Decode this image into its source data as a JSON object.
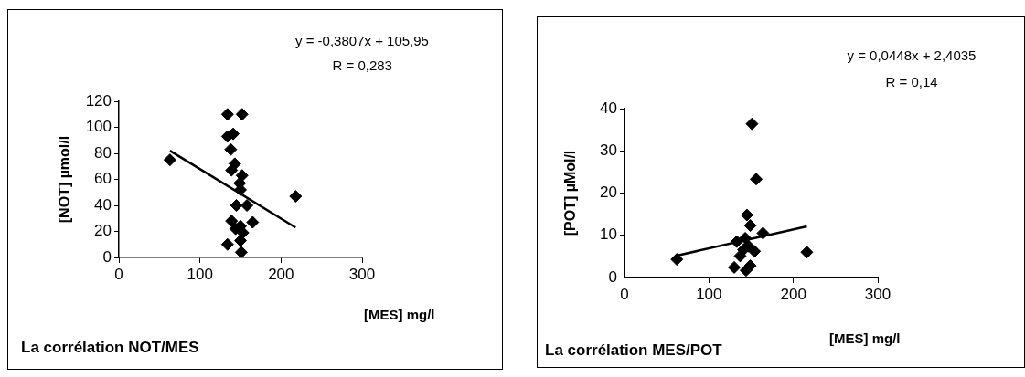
{
  "chart_data": [
    {
      "type": "scatter",
      "xlabel": "[MES] mg/l",
      "ylabel": "[NOT] µmol/l",
      "annotations": [
        "y = -0,3807x + 105,95",
        "R = 0,283",
        "La corrélation NOT/MES"
      ],
      "xlim": [
        0,
        300
      ],
      "xticks": [
        0,
        100,
        200,
        300
      ],
      "ylim": [
        0,
        120
      ],
      "yticks": [
        0,
        20,
        40,
        60,
        80,
        100,
        120
      ],
      "grid": false,
      "legend": false,
      "series": [
        {
          "type": "scatter",
          "marker": "diamond",
          "color": "#000000",
          "x": [
            63,
            134,
            152,
            134,
            141,
            138,
            143,
            139,
            152,
            149,
            150,
            218,
            145,
            158,
            139,
            150,
            165,
            144,
            153,
            150,
            134,
            151
          ],
          "values": [
            75,
            110,
            110,
            93,
            95,
            83,
            72,
            67,
            63,
            57,
            52,
            47,
            40,
            40,
            28,
            24,
            27,
            22,
            19,
            13,
            10,
            4
          ]
        },
        {
          "type": "line",
          "marker": "none",
          "color": "#000000",
          "x": [
            63,
            218
          ],
          "values": [
            82,
            23
          ]
        }
      ]
    },
    {
      "type": "scatter",
      "xlabel": "[MES] mg/l",
      "ylabel": "[POT] µMol/l",
      "annotations": [
        "y = 0,0448x + 2,4035",
        "R = 0,14",
        "La corrélation MES/POT"
      ],
      "xlim": [
        0,
        300
      ],
      "xticks": [
        0,
        100,
        200,
        300
      ],
      "ylim": [
        0,
        40
      ],
      "yticks": [
        0,
        10,
        20,
        30,
        40
      ],
      "grid": false,
      "legend": false,
      "series": [
        {
          "type": "scatter",
          "marker": "diamond",
          "color": "#000000",
          "x": [
            62,
            151,
            156,
            145,
            149,
            164,
            216,
            133,
            143,
            154,
            137,
            149,
            130,
            144,
            141,
            147
          ],
          "values": [
            4.3,
            36.4,
            23.3,
            14.8,
            12.3,
            10.5,
            6,
            8.5,
            9.3,
            6.2,
            5.1,
            2.8,
            2.4,
            1.7,
            6.6,
            7.4
          ]
        },
        {
          "type": "line",
          "marker": "none",
          "color": "#000000",
          "x": [
            62,
            216
          ],
          "values": [
            5.2,
            12.1
          ]
        }
      ]
    }
  ]
}
